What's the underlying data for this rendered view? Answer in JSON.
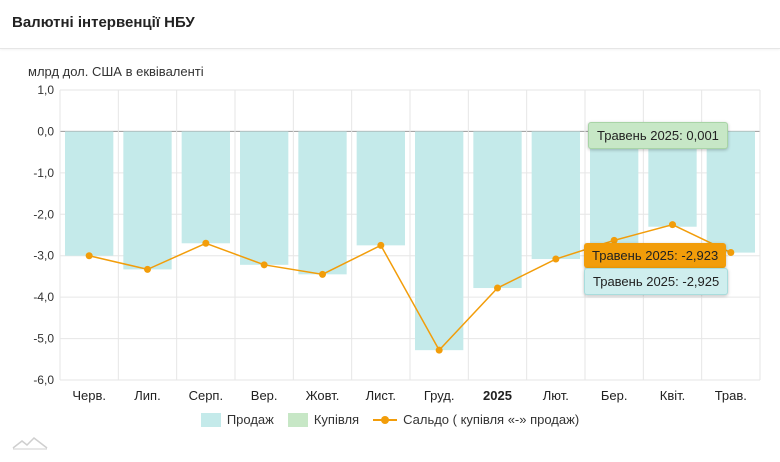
{
  "header": {
    "title": "Валютні інтервенції НБУ"
  },
  "unit_label": "млрд дол. США в еквіваленті",
  "colors": {
    "sales": "#c4eaea",
    "purchases": "#c7e7c6",
    "net": "#f29d0a",
    "grid": "#e6e6e6"
  },
  "legend": {
    "sales": "Продаж",
    "purchases": "Купівля",
    "net": "Сальдо ( купівля «-» продаж)"
  },
  "tooltips": {
    "purchases": "Травень 2025: 0,001",
    "net": "Травень 2025: -2,923",
    "sales": "Травень 2025: -2,925"
  },
  "chart_data": {
    "type": "bar",
    "categories": [
      "Черв.",
      "Лип.",
      "Серп.",
      "Вер.",
      "Жовт.",
      "Лист.",
      "Груд.",
      "2025",
      "Лют.",
      "Бер.",
      "Квіт.",
      "Трав."
    ],
    "category_bold": [
      false,
      false,
      false,
      false,
      false,
      false,
      false,
      true,
      false,
      false,
      false,
      false
    ],
    "ylim": [
      -6,
      1
    ],
    "yticks": [
      "1,0",
      "0,0",
      "-1,0",
      "-2,0",
      "-3,0",
      "-4,0",
      "-5,0",
      "-6,0"
    ],
    "ytick_values": [
      1,
      0,
      -1,
      -2,
      -3,
      -4,
      -5,
      -6
    ],
    "ylabel": "млрд дол. США в еквіваленті",
    "grid": true,
    "legend_position": "bottom",
    "series": [
      {
        "name": "Продаж",
        "type": "bar",
        "values": [
          -3.0,
          -3.33,
          -2.7,
          -3.22,
          -3.45,
          -2.75,
          -5.28,
          -3.78,
          -3.08,
          -2.72,
          -2.3,
          -2.925
        ]
      },
      {
        "name": "Купівля",
        "type": "bar",
        "values": [
          0,
          0,
          0,
          0,
          0,
          0,
          0,
          0,
          0,
          0,
          0,
          0.001
        ]
      },
      {
        "name": "Сальдо ( купівля «-» продаж)",
        "type": "line",
        "values": [
          -3.0,
          -3.33,
          -2.7,
          -3.22,
          -3.45,
          -2.75,
          -5.28,
          -3.78,
          -3.08,
          -2.63,
          -2.25,
          -2.923
        ]
      }
    ]
  }
}
